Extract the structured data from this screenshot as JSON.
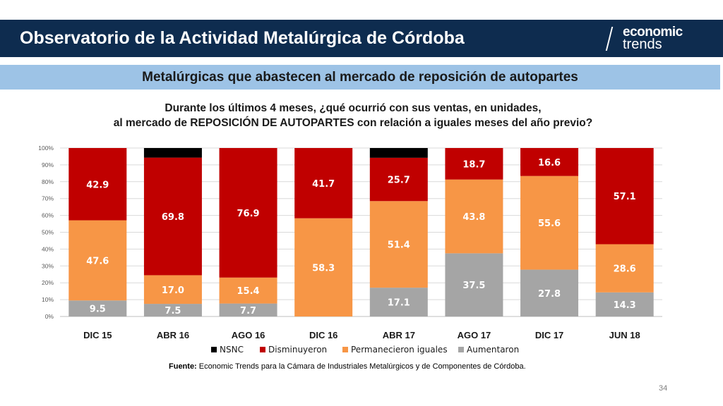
{
  "header": {
    "title": "Observatorio de la Actividad Metalúrgica de Córdoba"
  },
  "logo": {
    "line1": "economic",
    "line2": "trends"
  },
  "subheader": {
    "title": "Metalúrgicas que abastecen al mercado de reposición de autopartes"
  },
  "question": {
    "line1": "Durante los últimos 4 meses, ¿qué ocurrió con sus ventas, en unidades,",
    "line2": "al mercado de REPOSICIÓN DE AUTOPARTES con relación a iguales meses del año previo?"
  },
  "chart_data": {
    "type": "bar",
    "stacked": true,
    "categories": [
      "DIC 15",
      "ABR 16",
      "AGO 16",
      "DIC 16",
      "ABR 17",
      "AGO 17",
      "DIC 17",
      "JUN 18"
    ],
    "y_ticks": [
      "0%",
      "10%",
      "20%",
      "30%",
      "40%",
      "50%",
      "60%",
      "70%",
      "80%",
      "90%",
      "100%"
    ],
    "ylim": [
      0,
      100
    ],
    "grid": true,
    "legend_position": "bottom",
    "series": [
      {
        "name": "Aumentaron",
        "color": "#a5a5a5",
        "values": [
          9.5,
          7.5,
          7.7,
          0,
          17.1,
          37.5,
          27.8,
          14.3
        ],
        "labels": [
          "9.5",
          "7.5",
          "7.7",
          "",
          "17.1",
          "37.5",
          "27.8",
          "14.3"
        ]
      },
      {
        "name": "Permanecieron iguales",
        "color": "#f79646",
        "values": [
          47.6,
          17.0,
          15.4,
          58.3,
          51.4,
          43.8,
          55.6,
          28.6
        ],
        "labels": [
          "47.6",
          "17.0",
          "15.4",
          "58.3",
          "51.4",
          "43.8",
          "55.6",
          "28.6"
        ]
      },
      {
        "name": "Disminuyeron",
        "color": "#c00000",
        "values": [
          42.9,
          69.8,
          76.9,
          41.7,
          25.7,
          18.7,
          16.6,
          57.1
        ],
        "labels": [
          "42.9",
          "69.8",
          "76.9",
          "41.7",
          "25.7",
          "18.7",
          "16.6",
          "57.1"
        ]
      },
      {
        "name": "NSNC",
        "color": "#000000",
        "values": [
          0,
          5.7,
          0,
          0,
          5.8,
          0,
          0,
          0
        ],
        "labels": [
          "",
          "",
          "",
          "",
          "",
          "",
          "",
          ""
        ]
      }
    ],
    "legend_order": [
      "NSNC",
      "Disminuyeron",
      "Permanecieron iguales",
      "Aumentaron"
    ]
  },
  "source": {
    "label": "Fuente:",
    "text": "Economic Trends para la Cámara de Industriales Metalúrgicos y de Componentes de Córdoba."
  },
  "page_number": "34"
}
